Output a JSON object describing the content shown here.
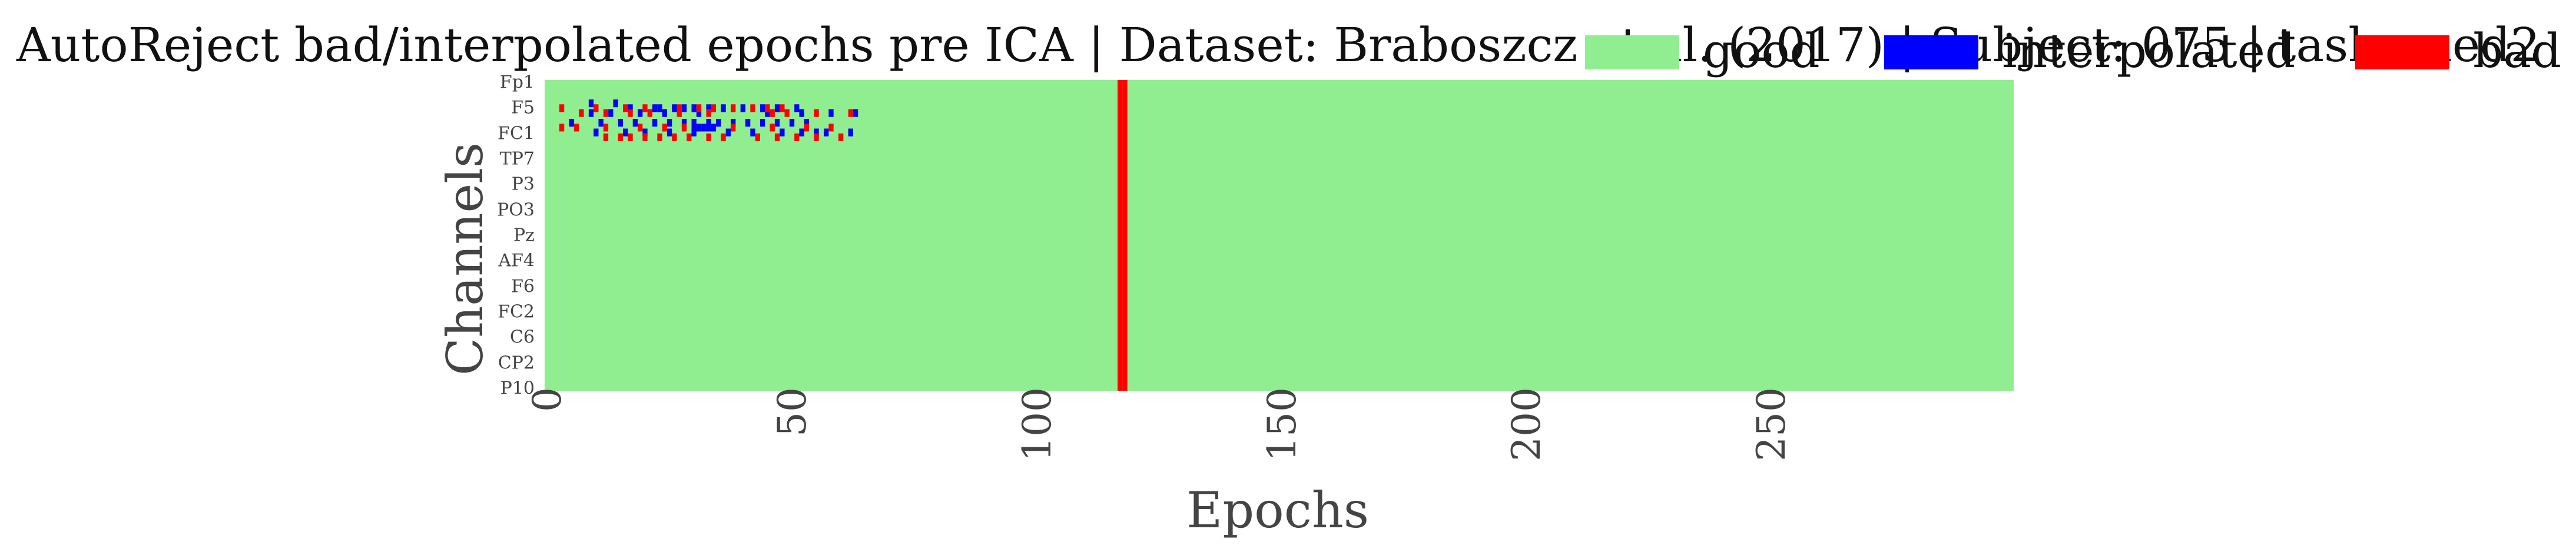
{
  "title": "AutoReject bad/interpolated epochs pre ICA | Dataset: Braboszcz et al. (2017) | Subject: 075 | task: med2",
  "legend": [
    {
      "label": "good",
      "color": "#90ee90"
    },
    {
      "label": "interpolated",
      "color": "#0000ff"
    },
    {
      "label": "bad",
      "color": "#ff0000"
    }
  ],
  "chart_data": {
    "type": "heatmap",
    "title": "AutoReject bad/interpolated epochs pre ICA | Dataset: Braboszcz et al. (2017) | Subject: 075 | task: med2",
    "xlabel": "Epochs",
    "ylabel": "Channels",
    "x_range": [
      0,
      300
    ],
    "x_ticks": [
      "0",
      "50",
      "100",
      "150",
      "200",
      "250"
    ],
    "n_channels": 64,
    "channel_tick_labels": [
      "Fp1",
      "F5",
      "FC1",
      "TP7",
      "P3",
      "PO3",
      "Pz",
      "AF4",
      "F6",
      "FC2",
      "C6",
      "CP2",
      "P10"
    ],
    "categories": [
      "good",
      "interpolated",
      "bad"
    ],
    "colors": {
      "good": "#90ee90",
      "interpolated": "#0000ff",
      "bad": "#ff0000"
    },
    "fully_bad_epochs": [
      117,
      118
    ],
    "interpolated_cells": [
      [
        9,
        4
      ],
      [
        14,
        4
      ],
      [
        17,
        5
      ],
      [
        22,
        5
      ],
      [
        23,
        5
      ],
      [
        26,
        5
      ],
      [
        28,
        5
      ],
      [
        30,
        5
      ],
      [
        33,
        5
      ],
      [
        36,
        5
      ],
      [
        40,
        5
      ],
      [
        44,
        5
      ],
      [
        47,
        5
      ],
      [
        51,
        5
      ],
      [
        9,
        6
      ],
      [
        13,
        6
      ],
      [
        19,
        6
      ],
      [
        24,
        6
      ],
      [
        31,
        6
      ],
      [
        45,
        6
      ],
      [
        52,
        6
      ],
      [
        58,
        6
      ],
      [
        63,
        6
      ],
      [
        5,
        8
      ],
      [
        11,
        8
      ],
      [
        15,
        8
      ],
      [
        18,
        8
      ],
      [
        22,
        8
      ],
      [
        25,
        8
      ],
      [
        28,
        8
      ],
      [
        30,
        8
      ],
      [
        33,
        8
      ],
      [
        35,
        8
      ],
      [
        38,
        8
      ],
      [
        41,
        8
      ],
      [
        44,
        8
      ],
      [
        47,
        8
      ],
      [
        50,
        8
      ],
      [
        53,
        8
      ],
      [
        30,
        9
      ],
      [
        31,
        9
      ],
      [
        32,
        9
      ],
      [
        33,
        9
      ],
      [
        34,
        9
      ],
      [
        10,
        10
      ],
      [
        16,
        10
      ],
      [
        20,
        10
      ],
      [
        25,
        10
      ],
      [
        30,
        10
      ],
      [
        37,
        10
      ],
      [
        42,
        10
      ],
      [
        48,
        10
      ],
      [
        52,
        10
      ],
      [
        55,
        10
      ],
      [
        57,
        10
      ],
      [
        62,
        10
      ]
    ],
    "bad_cells": [
      [
        3,
        5
      ],
      [
        10,
        5
      ],
      [
        16,
        5
      ],
      [
        20,
        5
      ],
      [
        27,
        5
      ],
      [
        31,
        5
      ],
      [
        34,
        5
      ],
      [
        38,
        5
      ],
      [
        42,
        5
      ],
      [
        45,
        5
      ],
      [
        48,
        5
      ],
      [
        7,
        6
      ],
      [
        12,
        6
      ],
      [
        17,
        6
      ],
      [
        21,
        6
      ],
      [
        27,
        6
      ],
      [
        33,
        6
      ],
      [
        46,
        6
      ],
      [
        49,
        6
      ],
      [
        55,
        6
      ],
      [
        62,
        6
      ],
      [
        3,
        9
      ],
      [
        6,
        9
      ],
      [
        12,
        9
      ],
      [
        19,
        9
      ],
      [
        24,
        9
      ],
      [
        28,
        9
      ],
      [
        38,
        9
      ],
      [
        46,
        9
      ],
      [
        53,
        9
      ],
      [
        58,
        9
      ],
      [
        12,
        11
      ],
      [
        15,
        11
      ],
      [
        17,
        11
      ],
      [
        20,
        11
      ],
      [
        23,
        11
      ],
      [
        26,
        11
      ],
      [
        29,
        11
      ],
      [
        33,
        11
      ],
      [
        36,
        11
      ],
      [
        43,
        11
      ],
      [
        47,
        11
      ],
      [
        51,
        11
      ],
      [
        55,
        11
      ],
      [
        60,
        11
      ]
    ]
  }
}
